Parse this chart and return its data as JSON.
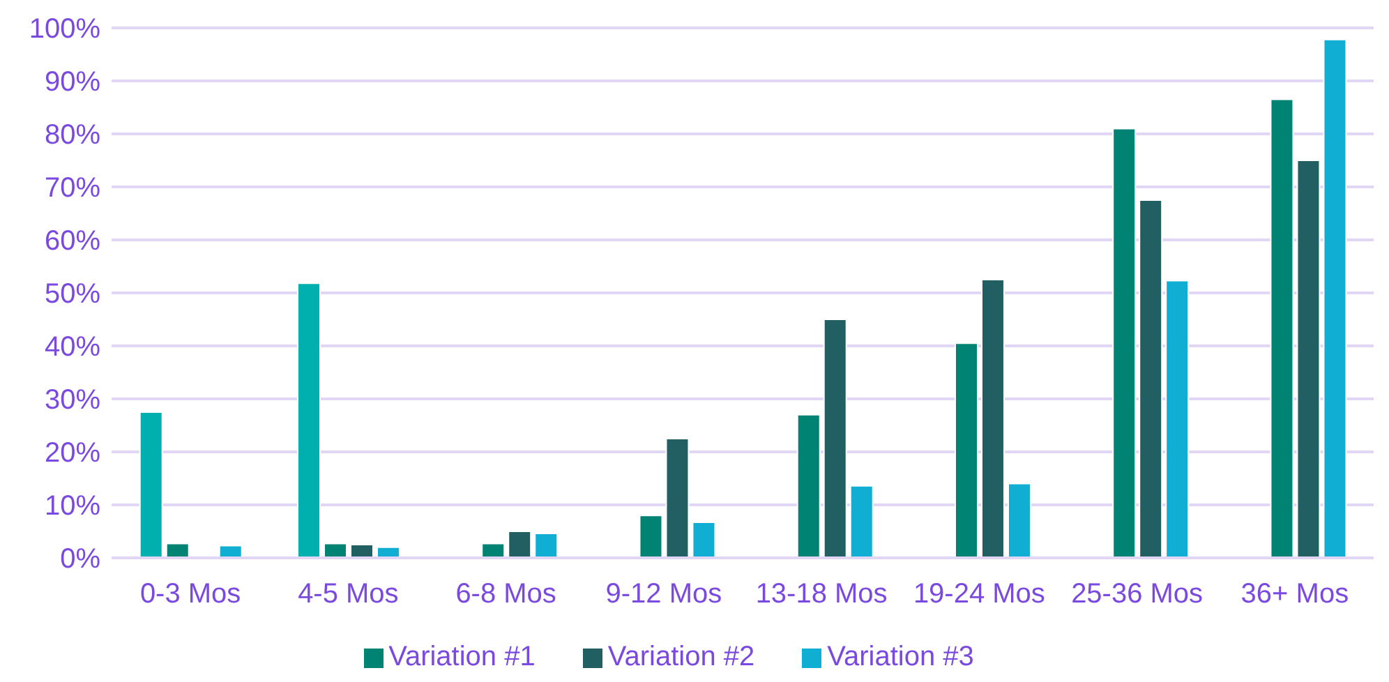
{
  "chart_data": {
    "type": "bar",
    "categories": [
      "0-3 Mos",
      "4-5 Mos",
      "6-8 Mos",
      "9-12 Mos",
      "13-18 Mos",
      "19-24 Mos",
      "25-36 Mos",
      "36+ Mos"
    ],
    "series": [
      {
        "color": "#00b0ae",
        "values": [
          27.5,
          51.8,
          0,
          0,
          0,
          0,
          0,
          0
        ]
      },
      {
        "name": "Variation #1",
        "color": "#008373",
        "values": [
          2.7,
          2.7,
          2.7,
          8.0,
          27,
          40.5,
          81,
          86.5
        ]
      },
      {
        "name": "Variation #2",
        "color": "#225f63",
        "values": [
          0,
          2.5,
          5.0,
          22.5,
          45,
          52.5,
          67.5,
          75
        ]
      },
      {
        "name": "Variation #3",
        "color": "#10aed3",
        "values": [
          2.3,
          2.0,
          4.6,
          6.7,
          13.6,
          14,
          52.3,
          97.8
        ]
      }
    ],
    "ylim": [
      0,
      100
    ],
    "yticks": [
      {
        "value": 0,
        "label": "0%"
      },
      {
        "value": 10,
        "label": "10%"
      },
      {
        "value": 20,
        "label": "20%"
      },
      {
        "value": 30,
        "label": "30%"
      },
      {
        "value": 40,
        "label": "40%"
      },
      {
        "value": 50,
        "label": "50%"
      },
      {
        "value": 60,
        "label": "60%"
      },
      {
        "value": 70,
        "label": "70%"
      },
      {
        "value": 80,
        "label": "80%"
      },
      {
        "value": 90,
        "label": "90%"
      },
      {
        "value": 100,
        "label": "100%"
      }
    ],
    "grid": "y",
    "legend": "bottom"
  }
}
